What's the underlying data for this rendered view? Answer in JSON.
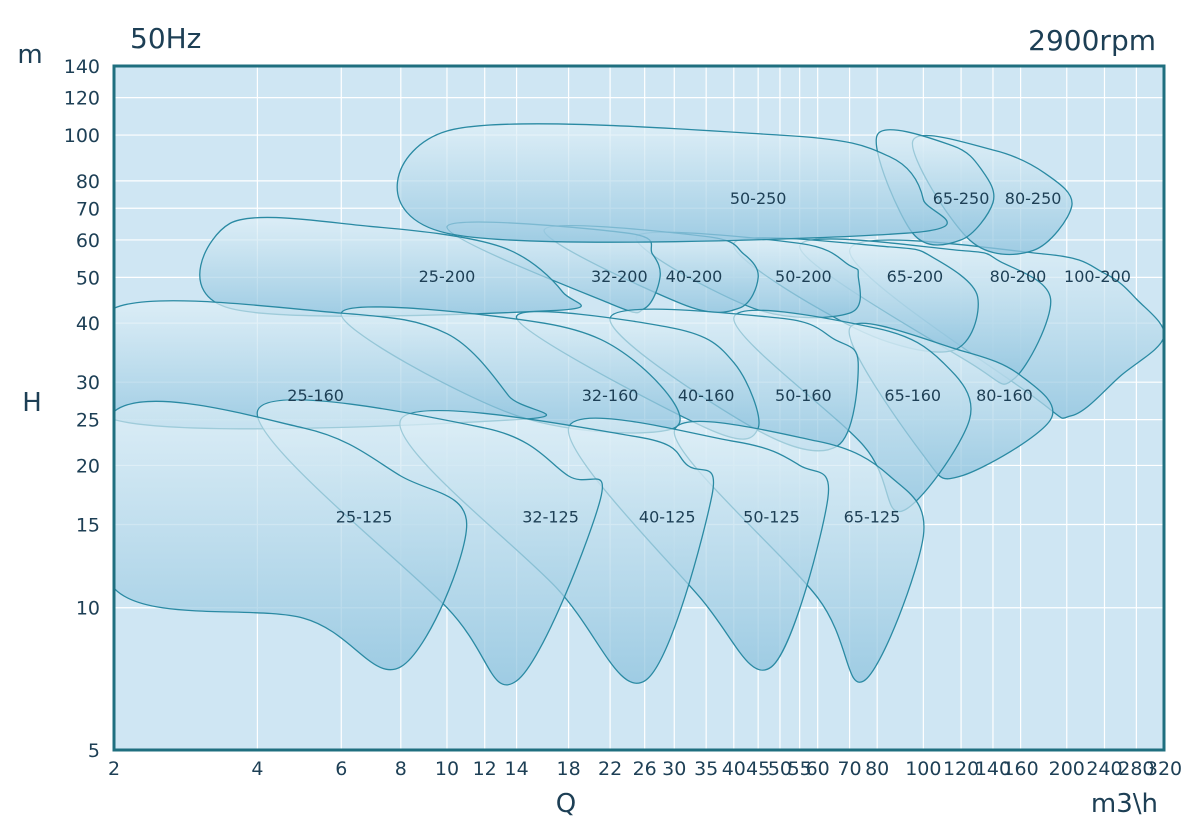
{
  "chart_data": {
    "type": "area",
    "title": "",
    "top_left_label": "50Hz",
    "top_right_label": "2900rpm",
    "ylabel": "H",
    "yunit": "m",
    "xlabel": "Q",
    "xunit": "m3\\h",
    "x_scale": "log",
    "y_scale": "log",
    "xlim": [
      2,
      320
    ],
    "ylim": [
      5,
      140
    ],
    "grid": true,
    "x_ticks": [
      2,
      4,
      6,
      8,
      10,
      12,
      14,
      18,
      22,
      26,
      30,
      35,
      40,
      45,
      50,
      55,
      60,
      70,
      80,
      100,
      120,
      140,
      160,
      200,
      240,
      280,
      320
    ],
    "x_tick_labels": [
      "2",
      "4",
      "6",
      "8",
      "10",
      "12",
      "14",
      "18",
      "22",
      "26",
      "30",
      "35",
      "40",
      "45",
      "50",
      "55",
      "60",
      "70",
      "80",
      "100",
      "120",
      "140",
      "160",
      "200",
      "240",
      "280",
      "320"
    ],
    "y_ticks": [
      5,
      10,
      15,
      20,
      25,
      30,
      40,
      50,
      60,
      70,
      80,
      100,
      120,
      140
    ],
    "y_tick_labels": [
      "5",
      "10",
      "15",
      "20",
      "25",
      "30",
      "40",
      "50",
      "60",
      "70",
      "80",
      "100",
      "120",
      "140"
    ],
    "series": [
      {
        "name": "100-200",
        "label_at": [
          232,
          50
        ],
        "outline": [
          [
            70,
            57
          ],
          [
            180,
            56
          ],
          [
            240,
            51
          ],
          [
            280,
            45
          ],
          [
            320,
            37.5
          ],
          [
            260,
            31
          ],
          [
            205,
            25.5
          ],
          [
            170,
            28
          ]
        ]
      },
      {
        "name": "80-200",
        "label_at": [
          158,
          50
        ],
        "outline": [
          [
            55,
            58
          ],
          [
            120,
            57
          ],
          [
            145,
            54
          ],
          [
            185,
            45
          ],
          [
            155,
            30.5
          ],
          [
            125,
            33
          ]
        ]
      },
      {
        "name": "65-200",
        "label_at": [
          96,
          50
        ],
        "outline": [
          [
            40,
            59
          ],
          [
            85,
            58
          ],
          [
            105,
            55
          ],
          [
            130,
            45.5
          ],
          [
            115,
            35
          ],
          [
            72,
            39
          ]
        ]
      },
      {
        "name": "50-200",
        "label_at": [
          56,
          50
        ],
        "outline": [
          [
            25,
            61
          ],
          [
            55,
            59
          ],
          [
            70,
            53
          ],
          [
            73,
            50.5
          ],
          [
            70,
            42
          ],
          [
            44,
            43
          ]
        ]
      },
      {
        "name": "40-200",
        "label_at": [
          33,
          50
        ],
        "outline": [
          [
            16,
            63
          ],
          [
            35,
            61
          ],
          [
            42,
            56
          ],
          [
            45,
            50
          ],
          [
            41,
            43
          ],
          [
            31,
            44
          ]
        ]
      },
      {
        "name": "32-200",
        "label_at": [
          23,
          50
        ],
        "outline": [
          [
            10,
            64
          ],
          [
            24,
            62
          ],
          [
            27,
            56
          ],
          [
            28,
            50
          ],
          [
            26,
            43
          ],
          [
            22,
            44
          ]
        ]
      },
      {
        "name": "25-200",
        "label_at": [
          10,
          50
        ],
        "outline": [
          [
            3.5,
            65
          ],
          [
            7,
            64
          ],
          [
            13,
            58
          ],
          [
            17.5,
            46.5
          ],
          [
            16.5,
            42.5
          ],
          [
            3.5,
            43
          ]
        ]
      },
      {
        "name": "80-250",
        "label_at": [
          170,
          73
        ],
        "outline": [
          [
            95,
            97
          ],
          [
            140,
            93
          ],
          [
            180,
            83
          ],
          [
            205,
            71
          ],
          [
            170,
            57
          ],
          [
            125,
            60
          ]
        ]
      },
      {
        "name": "65-250",
        "label_at": [
          120,
          73
        ],
        "outline": [
          [
            80,
            100
          ],
          [
            115,
            95
          ],
          [
            133,
            84
          ],
          [
            140,
            72
          ],
          [
            120,
            60
          ],
          [
            95,
            62
          ]
        ]
      },
      {
        "name": "50-250",
        "label_at": [
          45,
          73
        ],
        "outline": [
          [
            10,
            102
          ],
          [
            50,
            100
          ],
          [
            85,
            90
          ],
          [
            100,
            73
          ],
          [
            92,
            62
          ],
          [
            10,
            62
          ]
        ]
      },
      {
        "name": "80-160",
        "label_at": [
          148,
          28
        ],
        "outline": [
          [
            70,
            39
          ],
          [
            120,
            35
          ],
          [
            160,
            31
          ],
          [
            185,
            25
          ],
          [
            120,
            19
          ],
          [
            100,
            21
          ]
        ]
      },
      {
        "name": "65-160",
        "label_at": [
          95,
          28
        ],
        "outline": [
          [
            40,
            41
          ],
          [
            80,
            39
          ],
          [
            110,
            33
          ],
          [
            125,
            25
          ],
          [
            90,
            16
          ],
          [
            75,
            22
          ]
        ]
      },
      {
        "name": "50-160",
        "label_at": [
          56,
          28
        ],
        "outline": [
          [
            22,
            41
          ],
          [
            50,
            41
          ],
          [
            65,
            37
          ],
          [
            73,
            33
          ],
          [
            66,
            22
          ],
          [
            44,
            24
          ]
        ]
      },
      {
        "name": "40-160",
        "label_at": [
          35,
          28
        ],
        "outline": [
          [
            14,
            41
          ],
          [
            30,
            39
          ],
          [
            40,
            33
          ],
          [
            45,
            24
          ],
          [
            35,
            24
          ]
        ]
      },
      {
        "name": "32-160",
        "label_at": [
          22,
          28
        ],
        "outline": [
          [
            6,
            42
          ],
          [
            16,
            40
          ],
          [
            25,
            33
          ],
          [
            30,
            24
          ],
          [
            14,
            25.5
          ]
        ]
      },
      {
        "name": "25-160",
        "label_at": [
          5.3,
          28
        ],
        "outline": [
          [
            2,
            43
          ],
          [
            6,
            42
          ],
          [
            10,
            38
          ],
          [
            13.5,
            28
          ],
          [
            14,
            25
          ],
          [
            2,
            25
          ]
        ]
      },
      {
        "name": "65-125",
        "label_at": [
          78,
          15.5
        ],
        "outline": [
          [
            30,
            23.5
          ],
          [
            60,
            22.5
          ],
          [
            85,
            19
          ],
          [
            100,
            14.2
          ],
          [
            75,
            7
          ],
          [
            60,
            10.5
          ]
        ]
      },
      {
        "name": "50-125",
        "label_at": [
          48,
          15.5
        ],
        "outline": [
          [
            18,
            24
          ],
          [
            40,
            22.5
          ],
          [
            55,
            20
          ],
          [
            63,
            17
          ],
          [
            48,
            7.5
          ],
          [
            34,
            10.5
          ]
        ]
      },
      {
        "name": "40-125",
        "label_at": [
          29,
          15.5
        ],
        "outline": [
          [
            8,
            25
          ],
          [
            25,
            23
          ],
          [
            32,
            20
          ],
          [
            36,
            17.3
          ],
          [
            26,
            7
          ],
          [
            17,
            11
          ]
        ]
      },
      {
        "name": "32-125",
        "label_at": [
          16.5,
          15.5
        ],
        "outline": [
          [
            4,
            26
          ],
          [
            12,
            24
          ],
          [
            18,
            19
          ],
          [
            21,
            17
          ],
          [
            14,
            7
          ],
          [
            10,
            10
          ]
        ]
      },
      {
        "name": "25-125",
        "label_at": [
          6.7,
          15.5
        ],
        "outline": [
          [
            2,
            26
          ],
          [
            5,
            24
          ],
          [
            8,
            19
          ],
          [
            11,
            15
          ],
          [
            8,
            7.5
          ],
          [
            5,
            9.5
          ],
          [
            2,
            11
          ]
        ]
      }
    ]
  },
  "colors": {
    "plot_background": "#cfe6f3",
    "grid": "#ffffff",
    "frame": "#1f6f7f",
    "curve_stroke": "#2a8aa3",
    "fill_top": "#e2f1f8",
    "fill_bottom": "#8ec3de",
    "text": "#1d3f55"
  }
}
